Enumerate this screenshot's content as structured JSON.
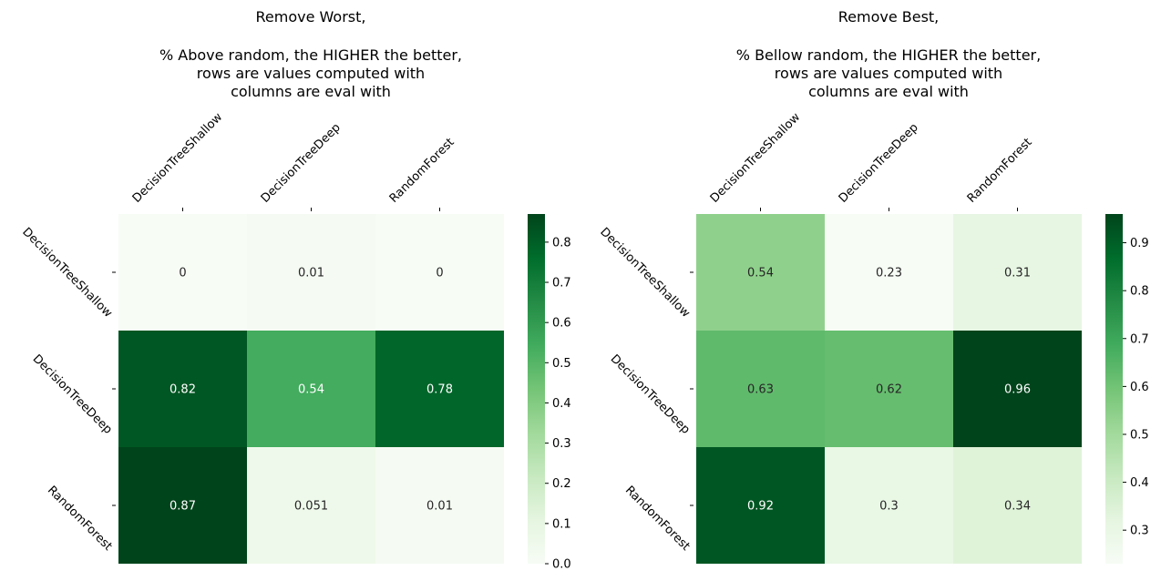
{
  "colors": {
    "scale": [
      "#f7fcf5",
      "#e5f5e0",
      "#c7e9c0",
      "#a1d99b",
      "#74c476",
      "#41ab5d",
      "#238b45",
      "#006d2c",
      "#00441b"
    ],
    "dark_text": "#262626",
    "light_text": "#ffffff"
  },
  "chart_data": [
    {
      "type": "heatmap",
      "title_lines": [
        "Remove Worst,",
        "",
        "% Above random, the HIGHER the better,",
        "rows are values computed with",
        "columns are eval with"
      ],
      "columns": [
        "DecisionTreeShallow",
        "DecisionTreeDeep",
        "RandomForest"
      ],
      "rows": [
        "DecisionTreeShallow",
        "DecisionTreeDeep",
        "RandomForest"
      ],
      "values": [
        [
          0,
          0.01,
          0
        ],
        [
          0.82,
          0.54,
          0.78
        ],
        [
          0.87,
          0.051,
          0.01
        ]
      ],
      "labels": [
        [
          "0",
          "0.01",
          "0"
        ],
        [
          "0.82",
          "0.54",
          "0.78"
        ],
        [
          "0.87",
          "0.051",
          "0.01"
        ]
      ],
      "vmin": 0,
      "vmax": 0.87,
      "colorbar_ticks": [
        "0.0",
        "0.1",
        "0.2",
        "0.3",
        "0.4",
        "0.5",
        "0.6",
        "0.7",
        "0.8"
      ],
      "colorbar_tick_values": [
        0,
        0.1,
        0.2,
        0.3,
        0.4,
        0.5,
        0.6,
        0.7,
        0.8
      ],
      "colormap": "Greens"
    },
    {
      "type": "heatmap",
      "title_lines": [
        "Remove Best,",
        "",
        "% Bellow random, the HIGHER the better,",
        "rows are values computed with",
        "columns are eval with"
      ],
      "columns": [
        "DecisionTreeShallow",
        "DecisionTreeDeep",
        "RandomForest"
      ],
      "rows": [
        "DecisionTreeShallow",
        "DecisionTreeDeep",
        "RandomForest"
      ],
      "values": [
        [
          0.54,
          0.23,
          0.31
        ],
        [
          0.63,
          0.62,
          0.96
        ],
        [
          0.92,
          0.3,
          0.34
        ]
      ],
      "labels": [
        [
          "0.54",
          "0.23",
          "0.31"
        ],
        [
          "0.63",
          "0.62",
          "0.96"
        ],
        [
          "0.92",
          "0.3",
          "0.34"
        ]
      ],
      "vmin": 0.23,
      "vmax": 0.96,
      "colorbar_ticks": [
        "0.3",
        "0.4",
        "0.5",
        "0.6",
        "0.7",
        "0.8",
        "0.9"
      ],
      "colorbar_tick_values": [
        0.3,
        0.4,
        0.5,
        0.6,
        0.7,
        0.8,
        0.9
      ],
      "colormap": "Greens"
    }
  ]
}
